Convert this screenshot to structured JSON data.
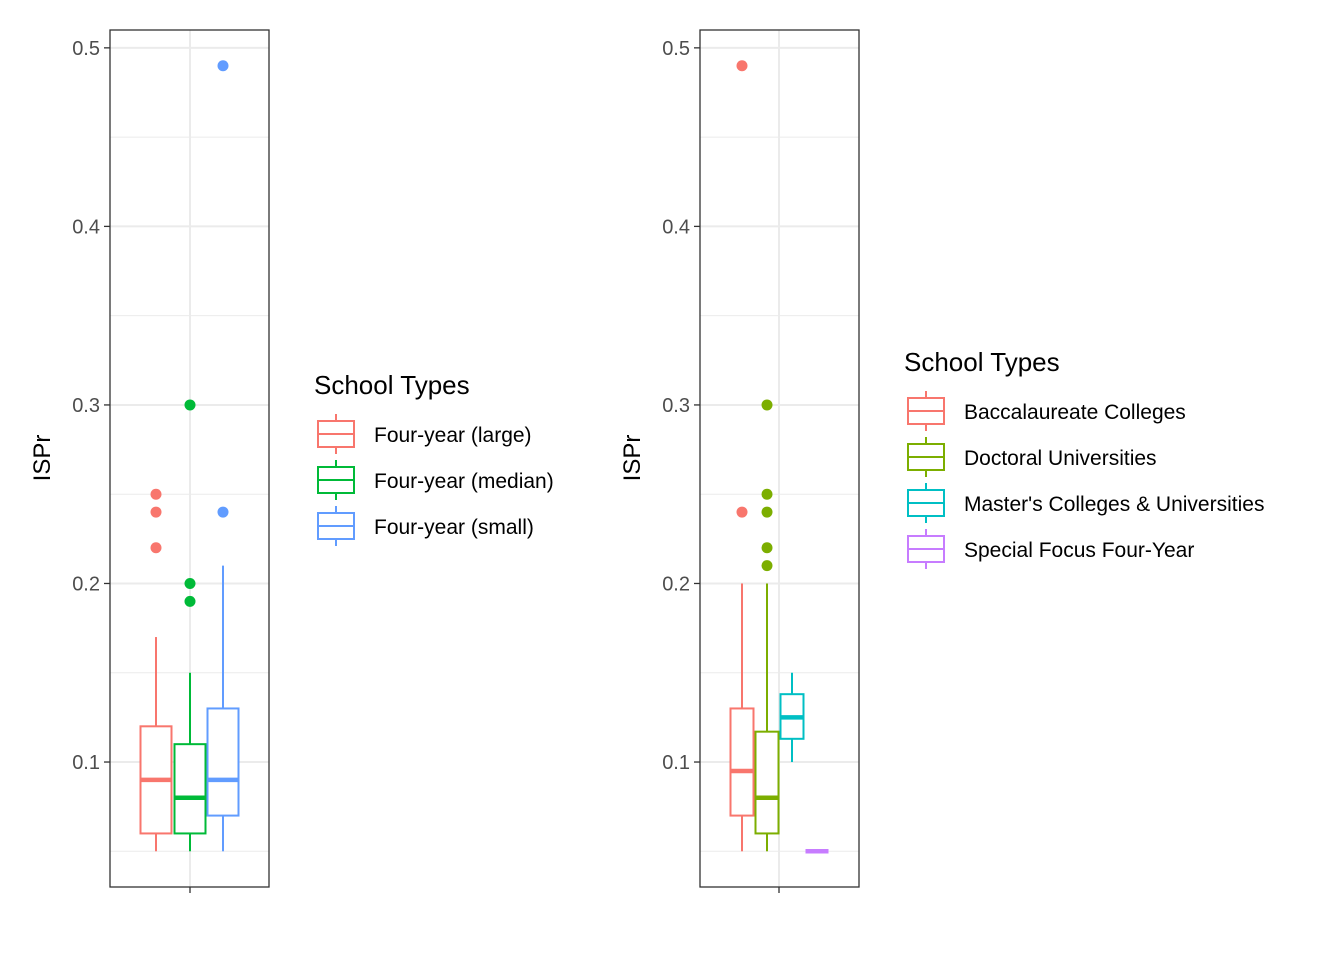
{
  "chart_data": [
    {
      "type": "box",
      "ylabel": "ISPr",
      "ylim": [
        0.03,
        0.51
      ],
      "yticks": [
        "0.1",
        "0.2",
        "0.3",
        "0.4",
        "0.5"
      ],
      "grid": true,
      "legend": {
        "title": "School Types",
        "placement": "right",
        "entries": [
          "Four-year (large)",
          "Four-year (median)",
          "Four-year (small)"
        ]
      },
      "series": [
        {
          "name": "Four-year (large)",
          "color": "#F8766D",
          "whisker_low": 0.05,
          "q1": 0.06,
          "median": 0.09,
          "q3": 0.12,
          "whisker_high": 0.17,
          "outliers": [
            0.25,
            0.24,
            0.22
          ]
        },
        {
          "name": "Four-year (median)",
          "color": "#00BA38",
          "whisker_low": 0.05,
          "q1": 0.06,
          "median": 0.08,
          "q3": 0.11,
          "whisker_high": 0.15,
          "outliers": [
            0.3,
            0.2,
            0.19
          ]
        },
        {
          "name": "Four-year (small)",
          "color": "#619CFF",
          "whisker_low": 0.05,
          "q1": 0.07,
          "median": 0.09,
          "q3": 0.13,
          "whisker_high": 0.21,
          "outliers": [
            0.49,
            0.24
          ]
        }
      ]
    },
    {
      "type": "box",
      "ylabel": "ISPr",
      "ylim": [
        0.03,
        0.51
      ],
      "yticks": [
        "0.1",
        "0.2",
        "0.3",
        "0.4",
        "0.5"
      ],
      "grid": true,
      "legend": {
        "title": "School Types",
        "placement": "right",
        "entries": [
          "Baccalaureate Colleges",
          "Doctoral Universities",
          "Master's Colleges & Universities",
          "Special Focus Four-Year"
        ]
      },
      "series": [
        {
          "name": "Baccalaureate Colleges",
          "color": "#F8766D",
          "whisker_low": 0.05,
          "q1": 0.07,
          "median": 0.095,
          "q3": 0.13,
          "whisker_high": 0.2,
          "outliers": [
            0.49,
            0.24
          ]
        },
        {
          "name": "Doctoral Universities",
          "color": "#7CAE00",
          "whisker_low": 0.05,
          "q1": 0.06,
          "median": 0.08,
          "q3": 0.117,
          "whisker_high": 0.2,
          "outliers": [
            0.3,
            0.25,
            0.24,
            0.22,
            0.21
          ]
        },
        {
          "name": "Master's Colleges & Universities",
          "color": "#00BFC4",
          "whisker_low": 0.1,
          "q1": 0.113,
          "median": 0.125,
          "q3": 0.138,
          "whisker_high": 0.15,
          "outliers": []
        },
        {
          "name": "Special Focus Four-Year",
          "color": "#C77CFF",
          "whisker_low": 0.05,
          "q1": 0.05,
          "median": 0.05,
          "q3": 0.05,
          "whisker_high": 0.05,
          "outliers": []
        }
      ]
    }
  ]
}
